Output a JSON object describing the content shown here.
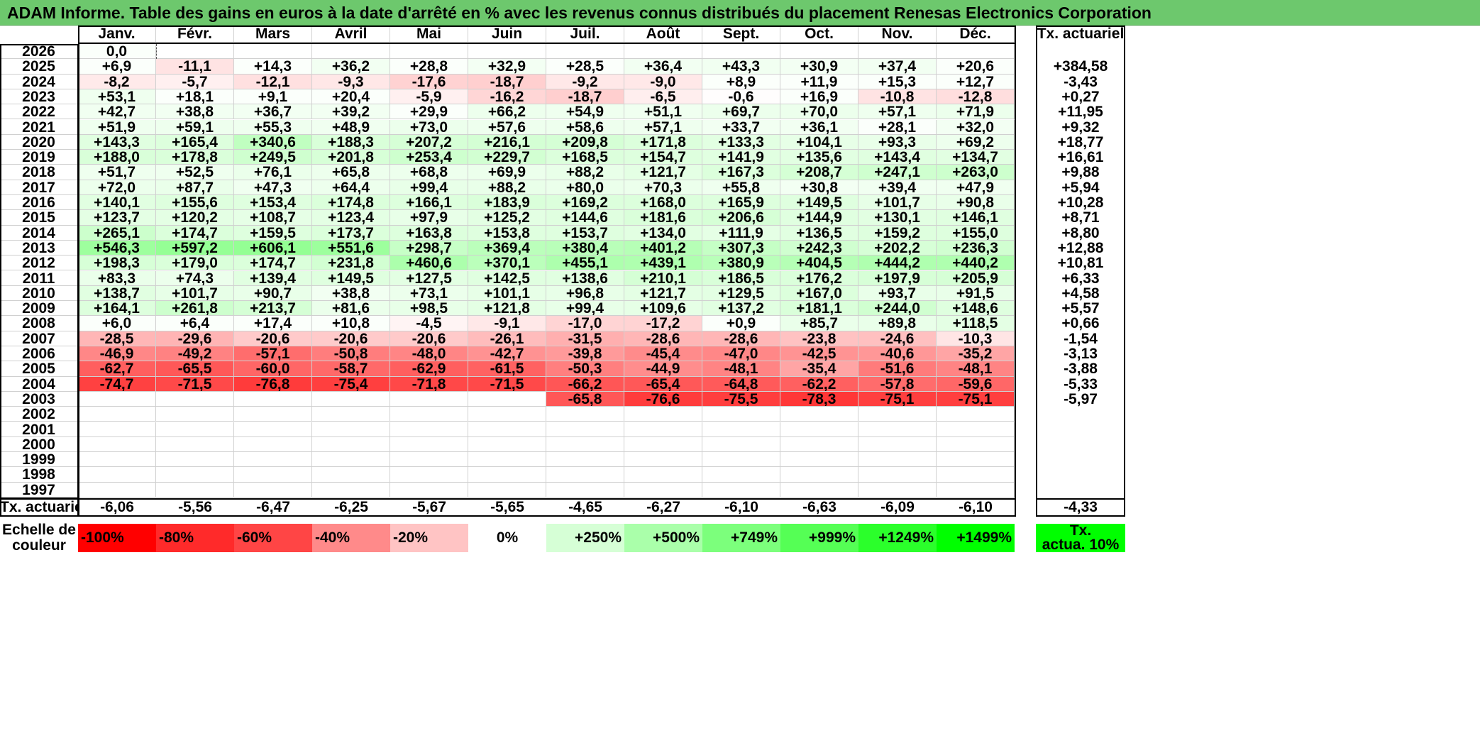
{
  "title": "ADAM Informe. Table des gains en euros à la date d'arrêté en % avec les revenus connus distribués du placement Renesas Electronics Corporation",
  "months": [
    "Janv.",
    "Févr.",
    "Mars",
    "Avril",
    "Mai",
    "Juin",
    "Juil.",
    "Août",
    "Sept.",
    "Oct.",
    "Nov.",
    "Déc."
  ],
  "rate_header": "Tx. actuariel",
  "rows": [
    {
      "year": "2026",
      "values": [
        "0,0",
        "",
        "",
        "",
        "",
        "",
        "",
        "",
        "",
        "",
        "",
        ""
      ],
      "rate": ""
    },
    {
      "year": "2025",
      "values": [
        "+6,9",
        "-11,1",
        "+14,3",
        "+36,2",
        "+28,8",
        "+32,9",
        "+28,5",
        "+36,4",
        "+43,3",
        "+30,9",
        "+37,4",
        "+20,6"
      ],
      "rate": "+384,58"
    },
    {
      "year": "2024",
      "values": [
        "-8,2",
        "-5,7",
        "-12,1",
        "-9,3",
        "-17,6",
        "-18,7",
        "-9,2",
        "-9,0",
        "+8,9",
        "+11,9",
        "+15,3",
        "+12,7"
      ],
      "rate": "-3,43"
    },
    {
      "year": "2023",
      "values": [
        "+53,1",
        "+18,1",
        "+9,1",
        "+20,4",
        "-5,9",
        "-16,2",
        "-18,7",
        "-6,5",
        "-0,6",
        "+16,9",
        "-10,8",
        "-12,8"
      ],
      "rate": "+0,27"
    },
    {
      "year": "2022",
      "values": [
        "+42,7",
        "+38,8",
        "+36,7",
        "+39,2",
        "+29,9",
        "+66,2",
        "+54,9",
        "+51,1",
        "+69,7",
        "+70,0",
        "+57,1",
        "+71,9"
      ],
      "rate": "+11,95"
    },
    {
      "year": "2021",
      "values": [
        "+51,9",
        "+59,1",
        "+55,3",
        "+48,9",
        "+73,0",
        "+57,6",
        "+58,6",
        "+57,1",
        "+33,7",
        "+36,1",
        "+28,1",
        "+32,0"
      ],
      "rate": "+9,32"
    },
    {
      "year": "2020",
      "values": [
        "+143,3",
        "+165,4",
        "+340,6",
        "+188,3",
        "+207,2",
        "+216,1",
        "+209,8",
        "+171,8",
        "+133,3",
        "+104,1",
        "+93,3",
        "+69,2"
      ],
      "rate": "+18,77"
    },
    {
      "year": "2019",
      "values": [
        "+188,0",
        "+178,8",
        "+249,5",
        "+201,8",
        "+253,4",
        "+229,7",
        "+168,5",
        "+154,7",
        "+141,9",
        "+135,6",
        "+143,4",
        "+134,7"
      ],
      "rate": "+16,61"
    },
    {
      "year": "2018",
      "values": [
        "+51,7",
        "+52,5",
        "+76,1",
        "+65,8",
        "+68,8",
        "+69,9",
        "+88,2",
        "+121,7",
        "+167,3",
        "+208,7",
        "+247,1",
        "+263,0"
      ],
      "rate": "+9,88"
    },
    {
      "year": "2017",
      "values": [
        "+72,0",
        "+87,7",
        "+47,3",
        "+64,4",
        "+99,4",
        "+88,2",
        "+80,0",
        "+70,3",
        "+55,8",
        "+30,8",
        "+39,4",
        "+47,9"
      ],
      "rate": "+5,94"
    },
    {
      "year": "2016",
      "values": [
        "+140,1",
        "+155,6",
        "+153,4",
        "+174,8",
        "+166,1",
        "+183,9",
        "+169,2",
        "+168,0",
        "+165,9",
        "+149,5",
        "+101,7",
        "+90,8"
      ],
      "rate": "+10,28"
    },
    {
      "year": "2015",
      "values": [
        "+123,7",
        "+120,2",
        "+108,7",
        "+123,4",
        "+97,9",
        "+125,2",
        "+144,6",
        "+181,6",
        "+206,6",
        "+144,9",
        "+130,1",
        "+146,1"
      ],
      "rate": "+8,71"
    },
    {
      "year": "2014",
      "values": [
        "+265,1",
        "+174,7",
        "+159,5",
        "+173,7",
        "+163,8",
        "+153,8",
        "+153,7",
        "+134,0",
        "+111,9",
        "+136,5",
        "+159,2",
        "+155,0"
      ],
      "rate": "+8,80"
    },
    {
      "year": "2013",
      "values": [
        "+546,3",
        "+597,2",
        "+606,1",
        "+551,6",
        "+298,7",
        "+369,4",
        "+380,4",
        "+401,2",
        "+307,3",
        "+242,3",
        "+202,2",
        "+236,3"
      ],
      "rate": "+12,88"
    },
    {
      "year": "2012",
      "values": [
        "+198,3",
        "+179,0",
        "+174,7",
        "+231,8",
        "+460,6",
        "+370,1",
        "+455,1",
        "+439,1",
        "+380,9",
        "+404,5",
        "+444,2",
        "+440,2"
      ],
      "rate": "+10,81"
    },
    {
      "year": "2011",
      "values": [
        "+83,3",
        "+74,3",
        "+139,4",
        "+149,5",
        "+127,5",
        "+142,5",
        "+138,6",
        "+210,1",
        "+186,5",
        "+176,2",
        "+197,9",
        "+205,9"
      ],
      "rate": "+6,33"
    },
    {
      "year": "2010",
      "values": [
        "+138,7",
        "+101,7",
        "+90,7",
        "+38,8",
        "+73,1",
        "+101,1",
        "+96,8",
        "+121,7",
        "+129,5",
        "+167,0",
        "+93,7",
        "+91,5"
      ],
      "rate": "+4,58"
    },
    {
      "year": "2009",
      "values": [
        "+164,1",
        "+261,8",
        "+213,7",
        "+81,6",
        "+98,5",
        "+121,8",
        "+99,4",
        "+109,6",
        "+137,2",
        "+181,1",
        "+244,0",
        "+148,6"
      ],
      "rate": "+5,57"
    },
    {
      "year": "2008",
      "values": [
        "+6,0",
        "+6,4",
        "+17,4",
        "+10,8",
        "-4,5",
        "-9,1",
        "-17,0",
        "-17,2",
        "+0,9",
        "+85,7",
        "+89,8",
        "+118,5"
      ],
      "rate": "+0,66"
    },
    {
      "year": "2007",
      "values": [
        "-28,5",
        "-29,6",
        "-20,6",
        "-20,6",
        "-20,6",
        "-26,1",
        "-31,5",
        "-28,6",
        "-28,6",
        "-23,8",
        "-24,6",
        "-10,3"
      ],
      "rate": "-1,54"
    },
    {
      "year": "2006",
      "values": [
        "-46,9",
        "-49,2",
        "-57,1",
        "-50,8",
        "-48,0",
        "-42,7",
        "-39,8",
        "-45,4",
        "-47,0",
        "-42,5",
        "-40,6",
        "-35,2"
      ],
      "rate": "-3,13"
    },
    {
      "year": "2005",
      "values": [
        "-62,7",
        "-65,5",
        "-60,0",
        "-58,7",
        "-62,9",
        "-61,5",
        "-50,3",
        "-44,9",
        "-48,1",
        "-35,4",
        "-51,6",
        "-48,1"
      ],
      "rate": "-3,88"
    },
    {
      "year": "2004",
      "values": [
        "-74,7",
        "-71,5",
        "-76,8",
        "-75,4",
        "-71,8",
        "-71,5",
        "-66,2",
        "-65,4",
        "-64,8",
        "-62,2",
        "-57,8",
        "-59,6"
      ],
      "rate": "-5,33"
    },
    {
      "year": "2003",
      "values": [
        "",
        "",
        "",
        "",
        "",
        "",
        "-65,8",
        "-76,6",
        "-75,5",
        "-78,3",
        "-75,1",
        "-75,1"
      ],
      "rate": "-5,97"
    },
    {
      "year": "2002",
      "values": [
        "",
        "",
        "",
        "",
        "",
        "",
        "",
        "",
        "",
        "",
        "",
        ""
      ],
      "rate": ""
    },
    {
      "year": "2001",
      "values": [
        "",
        "",
        "",
        "",
        "",
        "",
        "",
        "",
        "",
        "",
        "",
        ""
      ],
      "rate": ""
    },
    {
      "year": "2000",
      "values": [
        "",
        "",
        "",
        "",
        "",
        "",
        "",
        "",
        "",
        "",
        "",
        ""
      ],
      "rate": ""
    },
    {
      "year": "1999",
      "values": [
        "",
        "",
        "",
        "",
        "",
        "",
        "",
        "",
        "",
        "",
        "",
        ""
      ],
      "rate": ""
    },
    {
      "year": "1998",
      "values": [
        "",
        "",
        "",
        "",
        "",
        "",
        "",
        "",
        "",
        "",
        "",
        ""
      ],
      "rate": ""
    },
    {
      "year": "1997",
      "values": [
        "",
        "",
        "",
        "",
        "",
        "",
        "",
        "",
        "",
        "",
        "",
        ""
      ],
      "rate": ""
    }
  ],
  "footer": {
    "label": "Tx. actuariel",
    "values": [
      "-6,06",
      "-5,56",
      "-6,47",
      "-6,25",
      "-5,67",
      "-5,65",
      "-4,65",
      "-6,27",
      "-6,10",
      "-6,63",
      "-6,09",
      "-6,10"
    ],
    "total": "-4,33"
  },
  "legend": {
    "label_line1": "Echelle de",
    "label_line2": "couleur",
    "items": [
      {
        "text": "-100%",
        "color": "#ff0000",
        "align": "left"
      },
      {
        "text": "-80%",
        "color": "#ff2a2a",
        "align": "left"
      },
      {
        "text": "-60%",
        "color": "#ff4545",
        "align": "left"
      },
      {
        "text": "-40%",
        "color": "#ff8a8a",
        "align": "left"
      },
      {
        "text": "-20%",
        "color": "#ffc4c4",
        "align": "left"
      },
      {
        "text": "0%",
        "color": "#ffffff",
        "align": "center"
      },
      {
        "text": "+250%",
        "color": "#d6ffd6",
        "align": "right"
      },
      {
        "text": "+500%",
        "color": "#aaffaa",
        "align": "right"
      },
      {
        "text": "+749%",
        "color": "#7cff7c",
        "align": "right"
      },
      {
        "text": "+999%",
        "color": "#55ff55",
        "align": "right"
      },
      {
        "text": "+1249%",
        "color": "#2bff2b",
        "align": "right"
      },
      {
        "text": "+1499%",
        "color": "#00ff00",
        "align": "right"
      }
    ],
    "rate_line1": "Tx.",
    "rate_line2": "actua. 10%",
    "rate_color": "#00ff00"
  }
}
